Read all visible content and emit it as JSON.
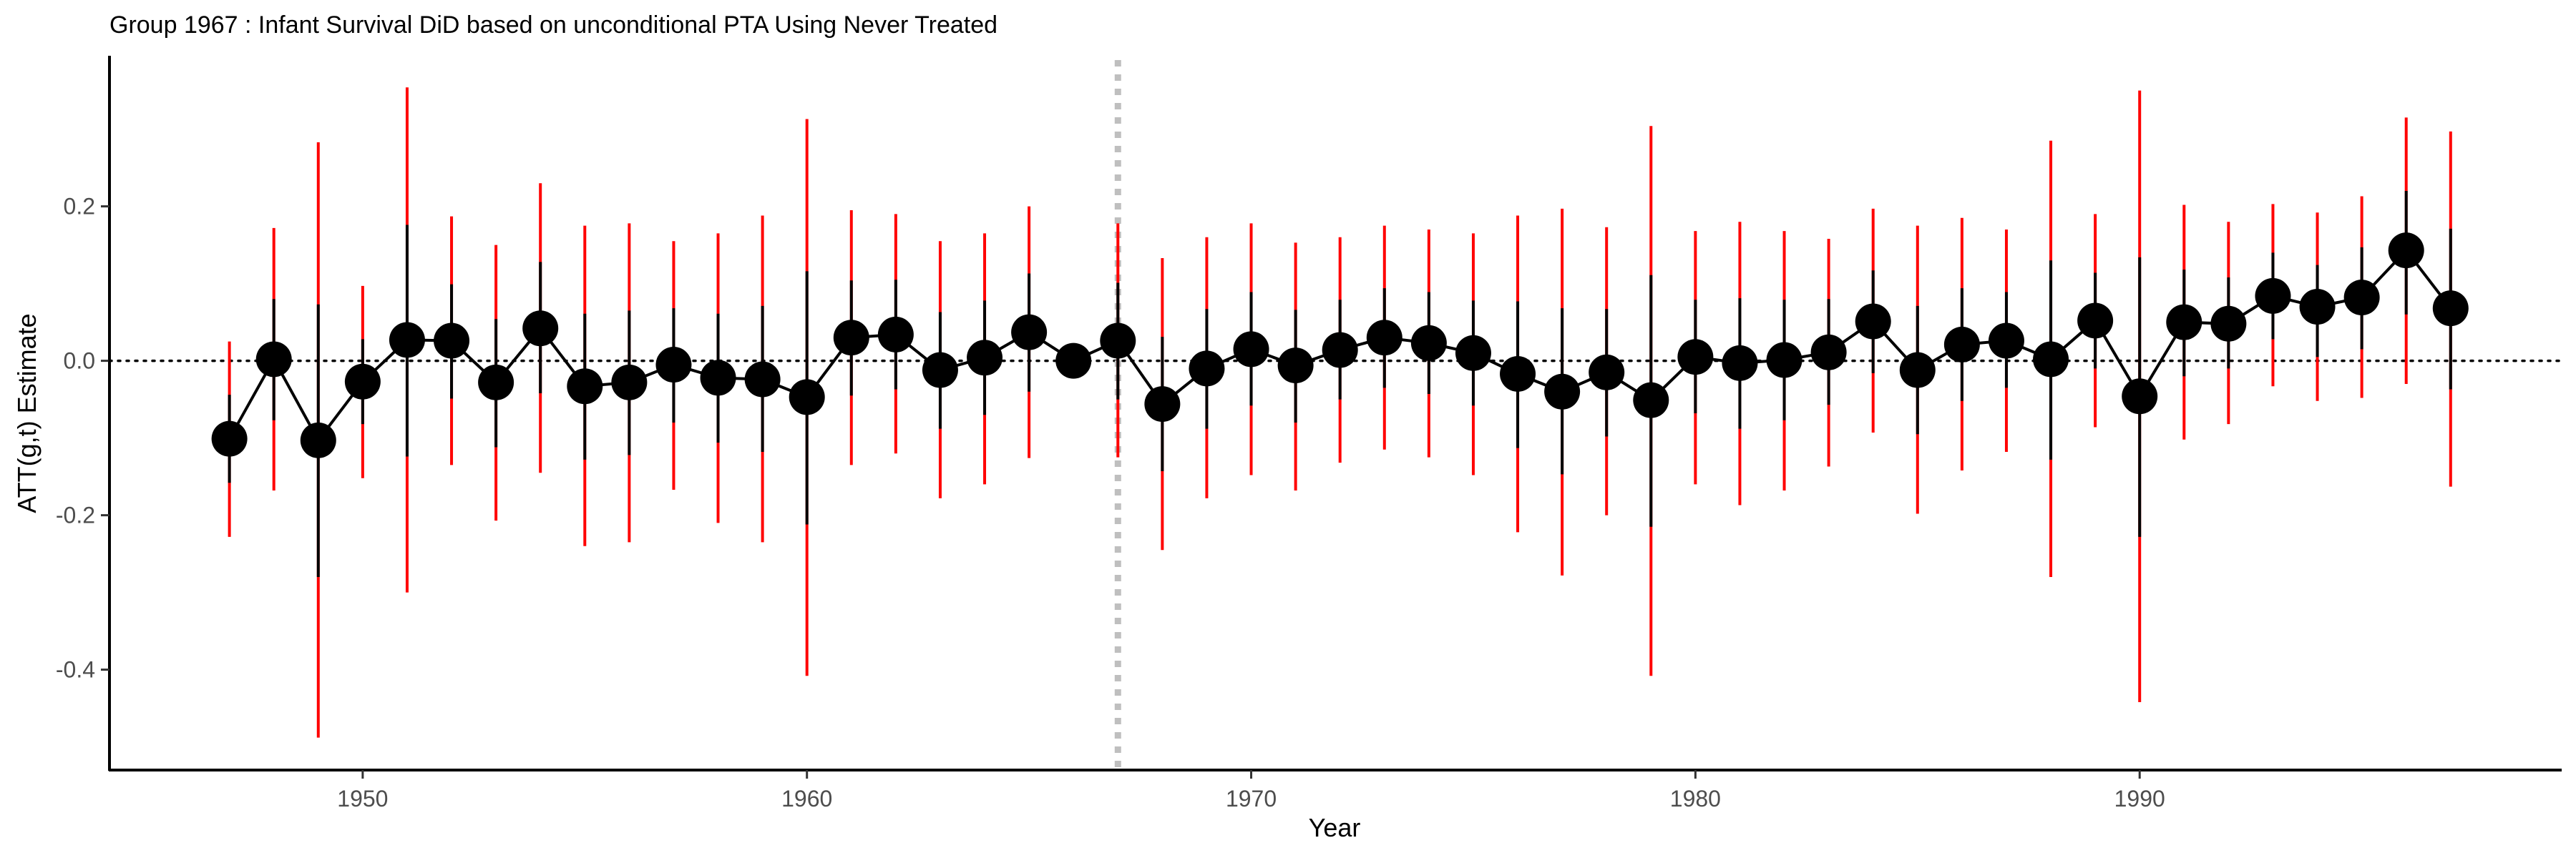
{
  "chart_data": {
    "type": "scatter",
    "title": "Group 1967 : Infant Survival DiD based on unconditional PTA Using Never Treated",
    "xlabel": "Year",
    "ylabel": "ATT(g,t) Estimate",
    "xlim": [
      1944.3,
      1999.5
    ],
    "ylim": [
      -0.53,
      0.395
    ],
    "x_ticks": [
      1950,
      1960,
      1970,
      1980,
      1990
    ],
    "x_tick_labels": [
      "1950",
      "1960",
      "1970",
      "1980",
      "1990"
    ],
    "y_ticks": [
      -0.4,
      -0.2,
      0.0,
      0.2
    ],
    "y_tick_labels": [
      "-0.4",
      "-0.2",
      "0.0",
      "0.2"
    ],
    "reference_line_y": 0,
    "treatment_year_line_x": 1967,
    "grid": false,
    "colors": {
      "point": "#000000",
      "pointwise_ci": "#000000",
      "uniform_band": "#ff0000",
      "treatment_line": "#bfbfbf",
      "reference_line": "#000000"
    },
    "series": [
      {
        "x": [
          1947,
          1948,
          1949,
          1950,
          1951,
          1952,
          1953,
          1954,
          1955,
          1956,
          1957,
          1958,
          1959,
          1960,
          1961,
          1962,
          1963,
          1964,
          1965,
          1966,
          1967,
          1968,
          1969,
          1970,
          1971,
          1972,
          1973,
          1974,
          1975,
          1976,
          1977,
          1978,
          1979,
          1980,
          1981,
          1982,
          1983,
          1984,
          1985,
          1986,
          1987,
          1988,
          1989,
          1990,
          1991,
          1992,
          1993,
          1994,
          1995,
          1996,
          1997
        ],
        "y": [
          -0.101,
          0.002,
          -0.103,
          -0.027,
          0.027,
          0.026,
          -0.028,
          0.042,
          -0.033,
          -0.028,
          -0.005,
          -0.022,
          -0.024,
          -0.047,
          0.03,
          0.034,
          -0.012,
          0.004,
          0.037,
          0.0,
          0.026,
          -0.056,
          -0.01,
          0.015,
          -0.006,
          0.014,
          0.03,
          0.023,
          0.01,
          -0.017,
          -0.04,
          -0.015,
          -0.051,
          0.005,
          -0.003,
          0.001,
          0.011,
          0.051,
          -0.012,
          0.021,
          0.026,
          0.002,
          0.052,
          -0.046,
          0.05,
          0.048,
          0.084,
          0.07,
          0.082,
          0.143,
          0.068
        ],
        "ci_low": [
          -0.158,
          -0.077,
          -0.28,
          -0.082,
          -0.124,
          -0.049,
          -0.112,
          -0.042,
          -0.128,
          -0.122,
          -0.08,
          -0.106,
          -0.118,
          -0.212,
          -0.045,
          -0.037,
          -0.088,
          -0.07,
          -0.04,
          0.0,
          -0.05,
          -0.143,
          -0.088,
          -0.058,
          -0.08,
          -0.05,
          -0.035,
          -0.043,
          -0.058,
          -0.113,
          -0.147,
          -0.098,
          -0.215,
          -0.068,
          -0.088,
          -0.077,
          -0.057,
          -0.016,
          -0.095,
          -0.052,
          -0.035,
          -0.128,
          -0.01,
          -0.228,
          -0.02,
          -0.01,
          0.028,
          0.005,
          0.015,
          0.06,
          -0.037
        ],
        "ci_high": [
          -0.044,
          0.08,
          0.073,
          0.028,
          0.176,
          0.099,
          0.054,
          0.128,
          0.061,
          0.065,
          0.068,
          0.061,
          0.071,
          0.116,
          0.104,
          0.105,
          0.063,
          0.078,
          0.113,
          0.0,
          0.101,
          0.031,
          0.067,
          0.089,
          0.066,
          0.079,
          0.094,
          0.089,
          0.078,
          0.077,
          0.068,
          0.067,
          0.111,
          0.079,
          0.081,
          0.079,
          0.08,
          0.117,
          0.071,
          0.094,
          0.089,
          0.13,
          0.114,
          0.134,
          0.118,
          0.108,
          0.14,
          0.124,
          0.147,
          0.22,
          0.171
        ],
        "band_low": [
          -0.228,
          -0.168,
          -0.488,
          -0.152,
          -0.3,
          -0.135,
          -0.207,
          -0.145,
          -0.24,
          -0.235,
          -0.167,
          -0.21,
          -0.235,
          -0.408,
          -0.135,
          -0.12,
          -0.178,
          -0.16,
          -0.126,
          0.0,
          -0.125,
          -0.245,
          -0.178,
          -0.148,
          -0.168,
          -0.132,
          -0.115,
          -0.125,
          -0.148,
          -0.222,
          -0.278,
          -0.2,
          -0.408,
          -0.16,
          -0.187,
          -0.168,
          -0.137,
          -0.093,
          -0.198,
          -0.142,
          -0.118,
          -0.28,
          -0.086,
          -0.442,
          -0.102,
          -0.082,
          -0.033,
          -0.052,
          -0.048,
          -0.03,
          -0.163
        ],
        "band_high": [
          0.025,
          0.172,
          0.283,
          0.097,
          0.354,
          0.187,
          0.15,
          0.23,
          0.175,
          0.178,
          0.155,
          0.165,
          0.188,
          0.313,
          0.195,
          0.19,
          0.155,
          0.165,
          0.2,
          0.0,
          0.178,
          0.133,
          0.16,
          0.178,
          0.153,
          0.16,
          0.175,
          0.17,
          0.165,
          0.188,
          0.197,
          0.173,
          0.304,
          0.168,
          0.18,
          0.168,
          0.158,
          0.197,
          0.175,
          0.185,
          0.17,
          0.285,
          0.19,
          0.35,
          0.202,
          0.18,
          0.203,
          0.192,
          0.213,
          0.315,
          0.297
        ]
      }
    ]
  }
}
